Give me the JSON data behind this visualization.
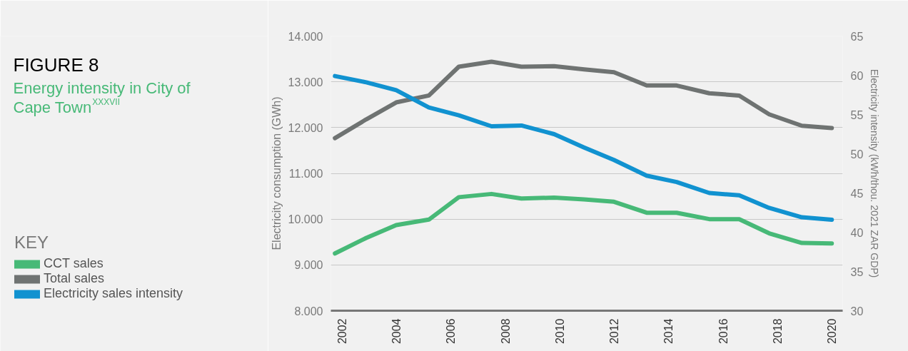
{
  "chart_data": {
    "type": "line",
    "title": "FIGURE 8",
    "subtitle": "Energy intensity in City of Cape Town$^{XXXVII}$",
    "ylabel": "Electricity consumption (GWh)",
    "y2label": "Electricity intensity (kWh/thou. 2021 ZAR GDP)",
    "legend_title": "KEY",
    "legend": "left",
    "grid": "y",
    "line_style": "solid",
    "marker": "none",
    "x": [
      2001.75,
      2002.9,
      2004.0,
      2005.2,
      2006.3,
      2007.5,
      2008.6,
      2009.8,
      2010.9,
      2012.0,
      2013.2,
      2014.3,
      2015.5,
      2016.6,
      2017.7,
      2018.9,
      2020.0
    ],
    "xlim": [
      2001.6,
      2020.4
    ],
    "xticks": [
      2002,
      2004,
      2006,
      2008,
      2010,
      2012,
      2014,
      2016,
      2018,
      2020
    ],
    "ylim": [
      8000,
      14000
    ],
    "yticks": [
      {
        "value": 8000,
        "label": "8.000"
      },
      {
        "value": 9000,
        "label": "9.000"
      },
      {
        "value": 10000,
        "label": "10.000"
      },
      {
        "value": 11000,
        "label": "11.000"
      },
      {
        "value": 12000,
        "label": "12.000"
      },
      {
        "value": 13000,
        "label": "13.000"
      },
      {
        "value": 14000,
        "label": "14.000"
      }
    ],
    "y2lim": [
      30,
      65
    ],
    "y2ticks": [
      30,
      35,
      40,
      45,
      50,
      55,
      60,
      65
    ],
    "series": [
      {
        "name": "CCT sales",
        "color": "#47b977",
        "values": [
          9250,
          9590,
          9870,
          9990,
          10480,
          10550,
          10450,
          10470,
          10430,
          10380,
          10140,
          10140,
          10000,
          10000,
          9690,
          9480,
          9470
        ]
      },
      {
        "name": "Total sales",
        "color": "#6f7372",
        "values": [
          11770,
          12180,
          12550,
          12700,
          13330,
          13440,
          13330,
          13340,
          13270,
          13210,
          12920,
          12920,
          12750,
          12700,
          12290,
          12040,
          11990
        ]
      },
      {
        "name": "Electricity sales intensity",
        "color": "#1192d0",
        "axis": "y2",
        "values": [
          59.9,
          59.1,
          58.1,
          55.9,
          54.9,
          53.5,
          53.6,
          52.5,
          50.8,
          49.2,
          47.2,
          46.4,
          45.0,
          44.7,
          43.1,
          41.9,
          41.6
        ]
      }
    ]
  }
}
